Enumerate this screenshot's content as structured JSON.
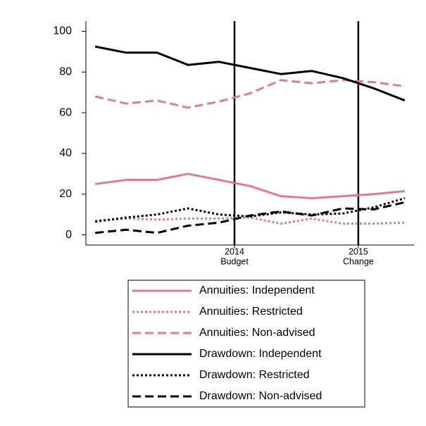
{
  "chart_data": {
    "type": "line",
    "x": [
      0,
      1,
      2,
      3,
      4,
      5,
      6,
      7,
      8,
      9,
      10
    ],
    "xlim": [
      -0.3,
      10.3
    ],
    "xticks": [
      {
        "value": 4.5,
        "label": [
          "2014",
          "Budget"
        ]
      },
      {
        "value": 8.5,
        "label": [
          "2015",
          "Change"
        ]
      }
    ],
    "ylim": [
      -5,
      105
    ],
    "yticks": [
      0,
      20,
      40,
      60,
      80,
      100
    ],
    "series": [
      {
        "name": "Annuities: Independent",
        "color": "#e07b8b",
        "dash": "solid",
        "values": [
          25,
          27,
          27,
          30,
          27,
          24,
          19,
          18,
          19,
          20,
          21.5
        ]
      },
      {
        "name": "Annuities: Restricted",
        "color": "#e07b8b",
        "dash": "dotted",
        "values": [
          7,
          8,
          7.5,
          8,
          8,
          8.5,
          5.5,
          8,
          5.5,
          5.5,
          6
        ]
      },
      {
        "name": "Annuities: Non-advised",
        "color": "#e07b8b",
        "dash": "dashed",
        "values": [
          68,
          64.5,
          66,
          62.5,
          65.5,
          69.5,
          76,
          74.5,
          76,
          75,
          73
        ]
      },
      {
        "name": "Drawdown: Independent",
        "color": "#000000",
        "dash": "solid",
        "values": [
          92.5,
          89.5,
          89.5,
          83.5,
          85,
          82,
          79,
          80.5,
          77,
          72,
          66
        ]
      },
      {
        "name": "Drawdown: Restricted",
        "color": "#000000",
        "dash": "dotted",
        "values": [
          6.5,
          8.5,
          10,
          13,
          10,
          9,
          11,
          10,
          10.5,
          13.5,
          18
        ]
      },
      {
        "name": "Drawdown: Non-advised",
        "color": "#000000",
        "dash": "dashed",
        "values": [
          1,
          2.5,
          1,
          4.5,
          6,
          9.5,
          11.5,
          9.5,
          13,
          12.5,
          16
        ]
      }
    ]
  }
}
